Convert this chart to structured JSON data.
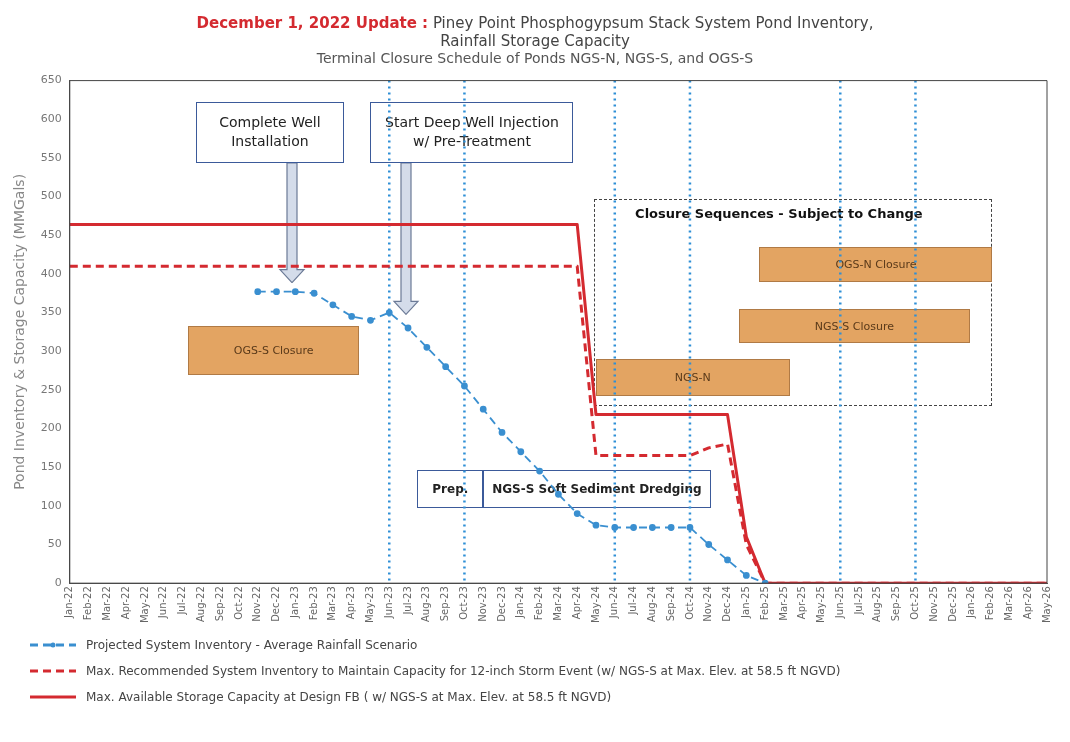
{
  "chart_data": {
    "type": "line",
    "title": "December 1, 2022 Update : Piney Point Phosphogypsum Stack System Pond Inventory, Rainfall Storage Capacity",
    "subtitle": "Terminal Closure Schedule of Ponds NGS-N, NGS-S, and OGS-S",
    "ylabel": "Pond Inventory & Storage Capacity (MMGals)",
    "categories": [
      "Jan-22",
      "Feb-22",
      "Mar-22",
      "Apr-22",
      "May-22",
      "Jun-22",
      "Jul-22",
      "Aug-22",
      "Sep-22",
      "Oct-22",
      "Nov-22",
      "Dec-22",
      "Jan-23",
      "Feb-23",
      "Mar-23",
      "Apr-23",
      "May-23",
      "Jun-23",
      "Jul-23",
      "Aug-23",
      "Sep-23",
      "Oct-23",
      "Nov-23",
      "Dec-23",
      "Jan-24",
      "Feb-24",
      "Mar-24",
      "Apr-24",
      "May-24",
      "Jun-24",
      "Jul-24",
      "Aug-24",
      "Sep-24",
      "Oct-24",
      "Nov-24",
      "Dec-24",
      "Jan-25",
      "Feb-25",
      "Mar-25",
      "Apr-25",
      "May-25",
      "Jun-25",
      "Jul-25",
      "Aug-25",
      "Sep-25",
      "Oct-25",
      "Nov-25",
      "Dec-25",
      "Jan-26",
      "Feb-26",
      "Mar-26",
      "Apr-26",
      "May-26"
    ],
    "series": [
      {
        "name": "Projected System Inventory -  Average Rainfall Scenario",
        "color": "#3a8fd0",
        "line_style": "dashed",
        "marker": "circle",
        "values": [
          null,
          null,
          null,
          null,
          null,
          null,
          null,
          null,
          null,
          null,
          377,
          377,
          377,
          375,
          360,
          345,
          340,
          350,
          330,
          305,
          280,
          255,
          225,
          195,
          170,
          145,
          115,
          90,
          75,
          72,
          72,
          72,
          72,
          72,
          50,
          30,
          10,
          0,
          null,
          null,
          null,
          null,
          null,
          null,
          null,
          null,
          null,
          null,
          null,
          null,
          null,
          null,
          null
        ]
      },
      {
        "name": "Max. Recommended System Inventory to Maintain Capacity for 12-inch Storm Event (w/ NGS-S at Max. Elev. at 58.5 ft NGVD)",
        "color": "#d42a30",
        "line_style": "dashed",
        "marker": "none",
        "values": [
          410,
          410,
          410,
          410,
          410,
          410,
          410,
          410,
          410,
          410,
          410,
          410,
          410,
          410,
          410,
          410,
          410,
          410,
          410,
          410,
          410,
          410,
          410,
          410,
          410,
          410,
          410,
          410,
          165,
          165,
          165,
          165,
          165,
          165,
          175,
          180,
          50,
          0,
          0,
          0,
          0,
          0,
          0,
          0,
          0,
          0,
          0,
          0,
          0,
          0,
          0,
          0,
          0
        ]
      },
      {
        "name": "Max. Available Storage Capacity at Design FB ( w/ NGS-S at Max. Elev. at 58.5 ft NGVD)",
        "color": "#d42a30",
        "line_style": "solid",
        "marker": "none",
        "values": [
          464,
          464,
          464,
          464,
          464,
          464,
          464,
          464,
          464,
          464,
          464,
          464,
          464,
          464,
          464,
          464,
          464,
          464,
          464,
          464,
          464,
          464,
          464,
          464,
          464,
          464,
          464,
          464,
          218,
          218,
          218,
          218,
          218,
          218,
          218,
          218,
          60,
          0,
          0,
          0,
          0,
          0,
          0,
          0,
          0,
          0,
          0,
          0,
          0,
          0,
          0,
          0,
          0
        ]
      }
    ],
    "ylim": [
      0,
      650
    ],
    "yticks": [
      0,
      50,
      100,
      150,
      200,
      250,
      300,
      350,
      400,
      450,
      500,
      550,
      600,
      650
    ],
    "grid": false,
    "legend": "bottom",
    "ref_lines": [
      {
        "axis": "x",
        "value": "Jun-23",
        "color": "#2e8fd6",
        "line_style": "dotted"
      },
      {
        "axis": "x",
        "value": "Oct-23",
        "color": "#2e8fd6",
        "line_style": "dotted"
      },
      {
        "axis": "x",
        "value": "Jun-24",
        "color": "#2e8fd6",
        "line_style": "dotted"
      },
      {
        "axis": "x",
        "value": "Oct-24",
        "color": "#2e8fd6",
        "line_style": "dotted"
      },
      {
        "axis": "x",
        "value": "Jun-25",
        "color": "#2e8fd6",
        "line_style": "dotted"
      },
      {
        "axis": "x",
        "value": "Oct-25",
        "color": "#2e8fd6",
        "line_style": "dotted"
      }
    ],
    "annotations": [
      "Complete Well Installation",
      "Start Deep Well Injection w/ Pre-Treatment",
      "Closure Sequences -  Subject to Change",
      "OGS-S Closure",
      "OGS-N Closure",
      "NGS-S Closure",
      "NGS-N",
      "Prep.",
      "NGS-S Soft Sediment Dredging"
    ]
  }
}
